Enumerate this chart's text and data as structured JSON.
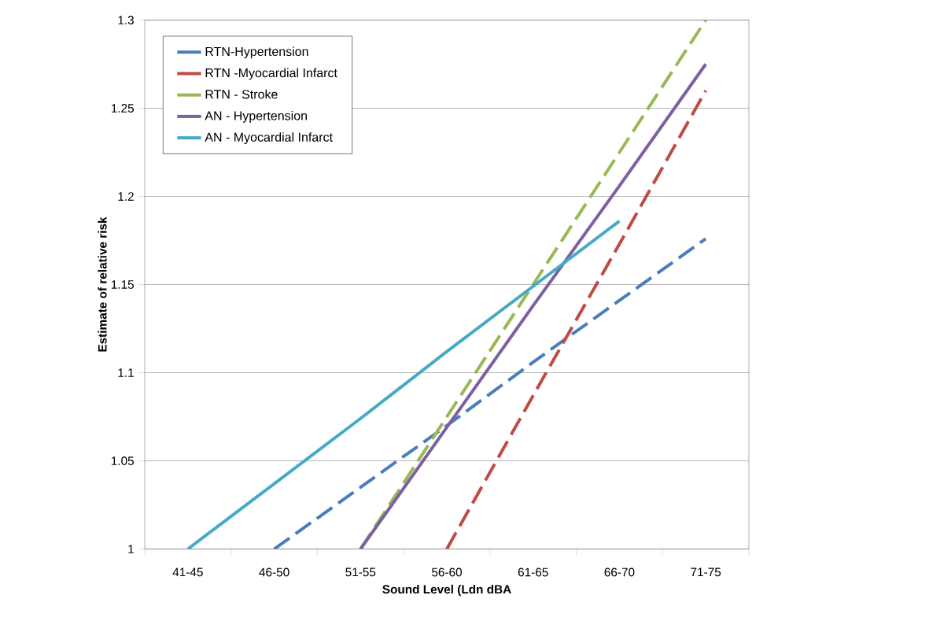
{
  "chart_data": {
    "type": "line",
    "xlabel": "Sound Level (Ldn dBA",
    "ylabel": "Estimate of relative risk",
    "categories": [
      "41-45",
      "46-50",
      "51-55",
      "56-60",
      "61-65",
      "66-70",
      "71-75"
    ],
    "series": [
      {
        "name": "RTN-Hypertension",
        "color": "#4a7ebb",
        "line_style": "dashed",
        "values": [
          null,
          1.0,
          1.035,
          1.07,
          1.106,
          1.141,
          1.176
        ]
      },
      {
        "name": "RTN -Myocardial Infarct",
        "color": "#be4b48",
        "line_style": "dashed",
        "values": [
          null,
          null,
          null,
          1.0,
          1.087,
          1.173,
          1.26
        ]
      },
      {
        "name": "RTN - Stroke",
        "color": "#98b954",
        "line_style": "dashed",
        "values": [
          null,
          null,
          1.0,
          1.075,
          1.15,
          1.225,
          1.3
        ]
      },
      {
        "name": "AN - Hypertension",
        "color": "#7d60a0",
        "line_style": "solid",
        "values": [
          null,
          null,
          1.0,
          1.069,
          1.138,
          1.206,
          1.275
        ]
      },
      {
        "name": "AN - Myocardial Infarct",
        "color": "#46aac5",
        "line_style": "solid",
        "values": [
          1.0,
          1.037,
          1.074,
          1.112,
          1.149,
          1.186,
          null
        ]
      }
    ],
    "ylim": [
      1,
      1.3
    ],
    "yticks": [
      1,
      1.05,
      1.1,
      1.15,
      1.2,
      1.25,
      1.3
    ],
    "grid": "y",
    "legend": "top left"
  }
}
